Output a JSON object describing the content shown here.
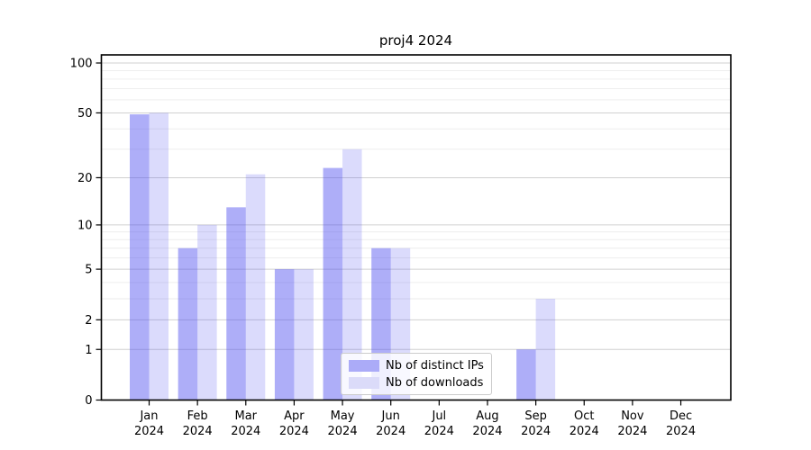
{
  "chart_data": {
    "type": "bar",
    "title": "proj4 2024",
    "categories": [
      "Jan 2024",
      "Feb 2024",
      "Mar 2024",
      "Apr 2024",
      "May 2024",
      "Jun 2024",
      "Jul 2024",
      "Aug 2024",
      "Sep 2024",
      "Oct 2024",
      "Nov 2024",
      "Dec 2024"
    ],
    "x_tick_month": [
      "Jan",
      "Feb",
      "Mar",
      "Apr",
      "May",
      "Jun",
      "Jul",
      "Aug",
      "Sep",
      "Oct",
      "Nov",
      "Dec"
    ],
    "x_tick_year": "2024",
    "series": [
      {
        "name": "Nb of distinct IPs",
        "values": [
          49,
          7,
          13,
          5,
          23,
          7,
          0,
          0,
          1,
          0,
          0,
          0
        ],
        "color_hex": "#ababf8",
        "fill": "rgba(85,85,240,0.48)"
      },
      {
        "name": "Nb of downloads",
        "values": [
          50,
          10,
          21,
          5,
          30,
          7,
          0,
          0,
          3,
          0,
          0,
          0
        ],
        "color_hex": "#dbdbf9",
        "fill": "rgba(85,85,240,0.21)"
      }
    ],
    "xlabel": "",
    "ylabel": "",
    "yscale": "log1p",
    "ylim": [
      0,
      112
    ],
    "yticks": [
      0,
      1,
      2,
      5,
      10,
      20,
      50,
      100
    ],
    "y_minor_ticks": [
      3,
      4,
      6,
      7,
      8,
      9,
      30,
      40,
      60,
      70,
      80,
      90
    ],
    "grid": "horizontal",
    "legend_position": "lower center",
    "colors": {
      "grid_major": "#d0d0d0",
      "grid_minor": "#ebebeb",
      "axis": "#000000",
      "tick_text": "#000000",
      "background": "#ffffff"
    }
  }
}
